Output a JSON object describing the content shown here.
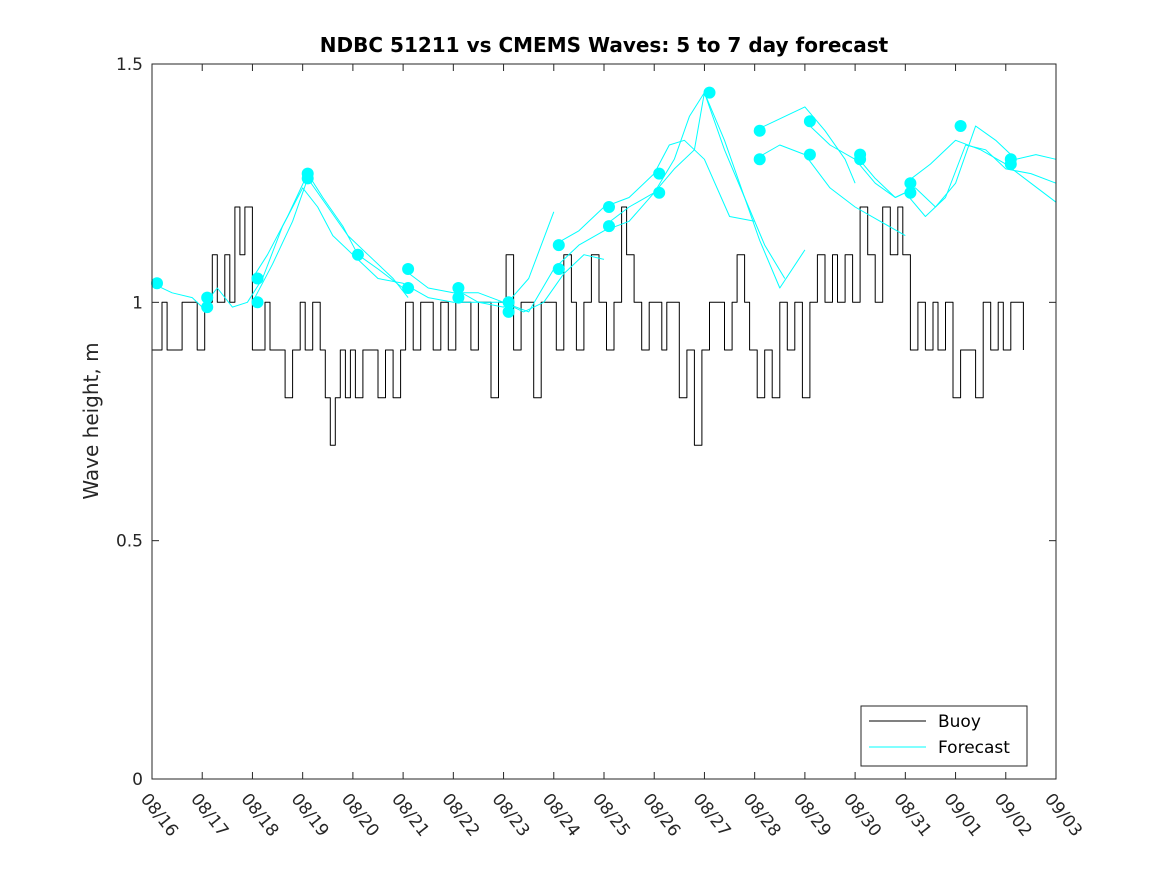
{
  "chart_data": {
    "type": "line",
    "title": "NDBC 51211 vs CMEMS Waves: 5 to 7 day forecast",
    "xlabel": "",
    "ylabel": "Wave height, m",
    "xlim": [
      0,
      18
    ],
    "ylim": [
      0,
      1.5
    ],
    "x_unit": "days since 08/16",
    "xtick_labels": [
      "08/16",
      "08/17",
      "08/18",
      "08/19",
      "08/20",
      "08/21",
      "08/22",
      "08/23",
      "08/24",
      "08/25",
      "08/26",
      "08/27",
      "08/28",
      "08/29",
      "08/30",
      "08/31",
      "09/01",
      "09/02",
      "09/03"
    ],
    "ytick_values": [
      0,
      0.5,
      1,
      1.5
    ],
    "ytick_labels": [
      "0",
      "0.5",
      "1",
      "1.5"
    ],
    "legend": {
      "position": "bottom-right",
      "entries": [
        "Buoy",
        "Forecast"
      ]
    },
    "colors": {
      "buoy": "#000000",
      "forecast": "#00ffff",
      "marker": "#00ffff"
    },
    "series": [
      {
        "name": "Buoy",
        "color": "#000000",
        "x": [
          0,
          0.2,
          0.3,
          0.45,
          0.6,
          0.75,
          0.9,
          1.05,
          1.2,
          1.3,
          1.45,
          1.55,
          1.65,
          1.75,
          1.85,
          2,
          2.1,
          2.25,
          2.35,
          2.5,
          2.65,
          2.8,
          2.95,
          3.05,
          3.2,
          3.35,
          3.45,
          3.55,
          3.65,
          3.75,
          3.85,
          3.95,
          4.05,
          4.2,
          4.35,
          4.5,
          4.65,
          4.8,
          4.95,
          5.05,
          5.2,
          5.35,
          5.5,
          5.6,
          5.75,
          5.9,
          6.05,
          6.2,
          6.35,
          6.5,
          6.65,
          6.75,
          6.9,
          7.05,
          7.2,
          7.35,
          7.5,
          7.6,
          7.75,
          7.9,
          8.05,
          8.2,
          8.35,
          8.45,
          8.6,
          8.75,
          8.9,
          9.05,
          9.2,
          9.35,
          9.45,
          9.6,
          9.75,
          9.9,
          10.05,
          10.15,
          10.25,
          10.4,
          10.5,
          10.65,
          10.8,
          10.95,
          11.1,
          11.25,
          11.4,
          11.55,
          11.65,
          11.8,
          11.9,
          12.05,
          12.2,
          12.35,
          12.5,
          12.65,
          12.8,
          12.95,
          13.1,
          13.25,
          13.4,
          13.55,
          13.65,
          13.8,
          13.95,
          14.1,
          14.25,
          14.4,
          14.55,
          14.7,
          14.85,
          14.95,
          15.1,
          15.25,
          15.4,
          15.55,
          15.65,
          15.8,
          15.95,
          16.1,
          16.25,
          16.4,
          16.55,
          16.7,
          16.85,
          16.95,
          17.1,
          17.25,
          17.35
        ],
        "values": [
          0.9,
          1,
          0.9,
          0.9,
          1,
          1,
          0.9,
          1,
          1.1,
          1,
          1.1,
          1,
          1.2,
          1.1,
          1.2,
          0.9,
          0.9,
          1,
          0.9,
          0.9,
          0.8,
          0.9,
          1,
          0.9,
          1,
          0.9,
          0.8,
          0.7,
          0.8,
          0.9,
          0.8,
          0.9,
          0.8,
          0.9,
          0.9,
          0.8,
          0.9,
          0.8,
          0.9,
          1,
          0.9,
          1,
          1,
          0.9,
          1,
          0.9,
          1,
          1,
          0.9,
          1,
          1,
          0.8,
          1,
          1.1,
          0.9,
          1,
          1,
          0.8,
          1,
          1,
          0.9,
          1.1,
          1,
          0.9,
          1,
          1.1,
          1,
          0.9,
          1,
          1.2,
          1.1,
          1,
          0.9,
          1,
          1,
          0.9,
          1,
          1,
          0.8,
          0.9,
          0.7,
          0.9,
          1,
          1,
          0.9,
          1,
          1.1,
          1,
          0.9,
          0.8,
          0.9,
          0.8,
          1,
          0.9,
          1,
          0.8,
          1,
          1.1,
          1,
          1.1,
          1,
          1.1,
          1,
          1.2,
          1.1,
          1,
          1.2,
          1.1,
          1.2,
          1.1,
          0.9,
          1,
          0.9,
          1,
          0.9,
          1,
          0.8,
          0.9,
          0.9,
          0.8,
          1,
          0.9,
          1,
          0.9,
          1,
          1,
          0.9
        ]
      },
      {
        "name": "Forecast",
        "color": "#00ffff",
        "x": [
          0,
          0.4,
          0.8,
          1.0,
          1.3,
          1.6,
          1.9,
          2.2,
          2.6,
          3.0,
          3.3,
          3.6,
          4.0
        ],
        "values": [
          1.04,
          1.02,
          1.01,
          0.99,
          1.03,
          0.99,
          1.0,
          1.05,
          1.16,
          1.24,
          1.2,
          1.14,
          1.1
        ]
      },
      {
        "name": "Forecast",
        "color": "#00ffff",
        "x": [
          2.0,
          2.3,
          2.7,
          3.1,
          3.4,
          3.8,
          4.1,
          4.5,
          5.0
        ],
        "values": [
          1.05,
          1.1,
          1.18,
          1.27,
          1.22,
          1.16,
          1.1,
          1.07,
          1.03
        ]
      },
      {
        "name": "Forecast",
        "color": "#00ffff",
        "x": [
          2.0,
          2.4,
          2.8,
          3.1,
          3.5,
          3.9,
          4.3,
          4.8,
          5.1
        ],
        "values": [
          1.0,
          1.08,
          1.17,
          1.26,
          1.2,
          1.14,
          1.1,
          1.05,
          1.01
        ]
      },
      {
        "name": "Forecast",
        "color": "#00ffff",
        "x": [
          4.0,
          4.5,
          5.0,
          5.5,
          6.0,
          6.5,
          7.0,
          7.5,
          8.0
        ],
        "values": [
          1.1,
          1.05,
          1.04,
          1.01,
          1.0,
          1.0,
          0.99,
          1.05,
          1.19
        ]
      },
      {
        "name": "Forecast",
        "color": "#00ffff",
        "x": [
          5.0,
          5.5,
          6.0,
          6.5,
          7.0,
          7.4,
          7.8,
          8.2,
          8.6,
          9.0
        ],
        "values": [
          1.07,
          1.03,
          1.02,
          1.02,
          1.0,
          0.98,
          1.0,
          1.06,
          1.1,
          1.09
        ]
      },
      {
        "name": "Forecast",
        "color": "#00ffff",
        "x": [
          6.0,
          6.5,
          7.0,
          7.5,
          8.0,
          8.5,
          9.0,
          9.5,
          10.0
        ],
        "values": [
          1.03,
          1.0,
          1.0,
          0.98,
          1.07,
          1.12,
          1.15,
          1.17,
          1.23
        ]
      },
      {
        "name": "Forecast",
        "color": "#00ffff",
        "x": [
          8.0,
          8.5,
          9.0,
          9.5,
          10.0,
          10.3,
          10.6,
          11.0,
          11.5,
          12.0
        ],
        "values": [
          1.12,
          1.15,
          1.2,
          1.22,
          1.27,
          1.33,
          1.34,
          1.3,
          1.18,
          1.17
        ]
      },
      {
        "name": "Forecast",
        "color": "#00ffff",
        "x": [
          9.0,
          9.5,
          10.0,
          10.4,
          10.7,
          11.0,
          11.4,
          11.8,
          12.2,
          12.6
        ],
        "values": [
          1.16,
          1.2,
          1.23,
          1.3,
          1.39,
          1.44,
          1.32,
          1.22,
          1.12,
          1.05
        ]
      },
      {
        "name": "Forecast",
        "color": "#00ffff",
        "x": [
          10.0,
          10.4,
          10.8,
          11.0,
          11.4,
          11.8,
          12.1,
          12.5,
          13.0
        ],
        "values": [
          1.23,
          1.28,
          1.32,
          1.44,
          1.34,
          1.22,
          1.13,
          1.03,
          1.11
        ]
      },
      {
        "name": "Forecast",
        "color": "#00ffff",
        "x": [
          12.0,
          12.4,
          12.8,
          13.0,
          13.4,
          13.8,
          14.0
        ],
        "values": [
          1.36,
          1.38,
          1.4,
          1.41,
          1.36,
          1.3,
          1.25
        ]
      },
      {
        "name": "Forecast",
        "color": "#00ffff",
        "x": [
          12.0,
          12.5,
          13.0,
          13.5,
          14.0,
          14.5,
          15.0
        ],
        "values": [
          1.3,
          1.33,
          1.31,
          1.24,
          1.2,
          1.17,
          1.14
        ]
      },
      {
        "name": "Forecast",
        "color": "#00ffff",
        "x": [
          13.0,
          13.5,
          14.0,
          14.4,
          14.8,
          15.2,
          15.6,
          16.0,
          16.4,
          16.8,
          17.2,
          17.6,
          18.0
        ],
        "values": [
          1.38,
          1.33,
          1.3,
          1.25,
          1.22,
          1.24,
          1.2,
          1.25,
          1.37,
          1.34,
          1.3,
          1.31,
          1.3
        ]
      },
      {
        "name": "Forecast",
        "color": "#00ffff",
        "x": [
          14.0,
          14.4,
          14.8,
          15.0,
          15.4,
          15.8,
          16.2,
          16.6,
          17.0,
          17.5,
          18.0
        ],
        "values": [
          1.31,
          1.26,
          1.22,
          1.23,
          1.18,
          1.22,
          1.33,
          1.32,
          1.28,
          1.27,
          1.25
        ]
      },
      {
        "name": "Forecast",
        "color": "#00ffff",
        "x": [
          15.0,
          15.5,
          16.0,
          16.5,
          17.0,
          17.5,
          18.0
        ],
        "values": [
          1.25,
          1.29,
          1.34,
          1.32,
          1.29,
          1.25,
          1.21
        ]
      }
    ],
    "markers": {
      "name": "Forecast points",
      "color": "#00ffff",
      "x": [
        0.1,
        1.1,
        1.1,
        2.1,
        2.1,
        3.1,
        3.1,
        4.1,
        5.1,
        5.1,
        6.1,
        6.1,
        7.1,
        7.1,
        8.1,
        8.1,
        9.1,
        9.1,
        10.1,
        10.1,
        11.1,
        12.1,
        12.1,
        13.1,
        13.1,
        14.1,
        14.1,
        15.1,
        15.1,
        16.1,
        17.1,
        17.1
      ],
      "values": [
        1.04,
        1.01,
        0.99,
        1.05,
        1.0,
        1.27,
        1.26,
        1.1,
        1.07,
        1.03,
        1.03,
        1.01,
        1.0,
        0.98,
        1.12,
        1.07,
        1.2,
        1.16,
        1.27,
        1.23,
        1.44,
        1.36,
        1.3,
        1.38,
        1.31,
        1.31,
        1.3,
        1.25,
        1.23,
        1.37,
        1.3,
        1.29
      ]
    }
  }
}
